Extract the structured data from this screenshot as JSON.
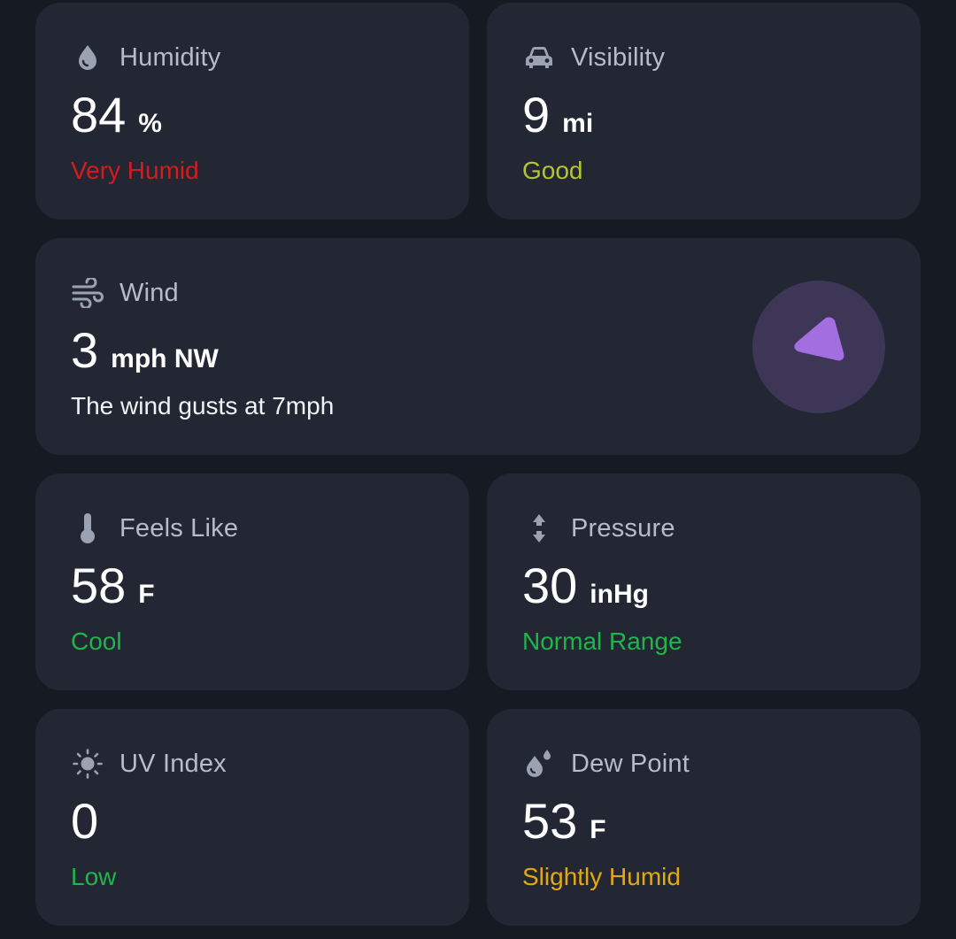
{
  "humidity": {
    "label": "Humidity",
    "value": "84",
    "unit": "%",
    "status": "Very Humid",
    "status_color": "#d61b1f",
    "icon": "water-drop-icon"
  },
  "visibility": {
    "label": "Visibility",
    "value": "9",
    "unit": "mi",
    "status": "Good",
    "status_color": "#b6c52b",
    "icon": "car-icon"
  },
  "wind": {
    "label": "Wind",
    "value": "3",
    "unit": "mph NW",
    "description": "The wind gusts at 7mph",
    "icon": "wind-icon",
    "direction_icon": "wind-direction-arrow-icon",
    "accent": "#a26ee0"
  },
  "feels_like": {
    "label": "Feels Like",
    "value": "58",
    "unit": "F",
    "status": "Cool",
    "status_color": "#1fb54a",
    "icon": "thermometer-icon"
  },
  "pressure": {
    "label": "Pressure",
    "value": "30",
    "unit": "inHg",
    "status": "Normal Range",
    "status_color": "#1fb54a",
    "icon": "pressure-arrows-icon"
  },
  "uv_index": {
    "label": "UV Index",
    "value": "0",
    "status": "Low",
    "status_color": "#1fb54a",
    "icon": "sun-icon"
  },
  "dew_point": {
    "label": "Dew Point",
    "value": "53",
    "unit": "F",
    "status": "Slightly Humid",
    "status_color": "#e4a813",
    "icon": "dew-drops-icon"
  }
}
